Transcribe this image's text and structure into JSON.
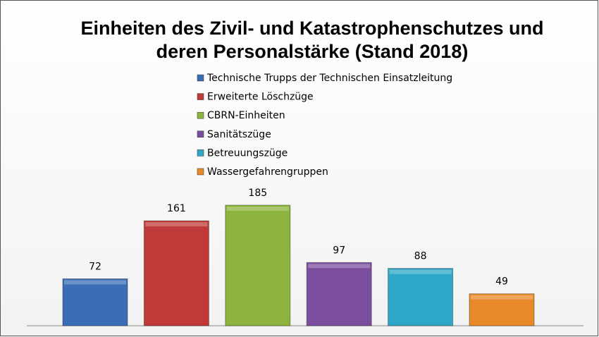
{
  "chart_data": {
    "type": "bar",
    "title": [
      "Einheiten des Zivil- und Katastrophenschutzes und",
      "deren Personalstärke (Stand 2018)"
    ],
    "categories": [
      null
    ],
    "series": [
      {
        "name": "Technische Trupps der Technischen Einsatzleitung",
        "color": "#3b6db5",
        "values": [
          72
        ]
      },
      {
        "name": "Erweiterte Löschzüge",
        "color": "#c03a3a",
        "values": [
          161
        ]
      },
      {
        "name": "CBRN-Einheiten",
        "color": "#8cb33c",
        "values": [
          185
        ]
      },
      {
        "name": "Sanitätszüge",
        "color": "#7a4e9c",
        "values": [
          97
        ]
      },
      {
        "name": "Betreuungszüge",
        "color": "#2ea7c8",
        "values": [
          88
        ]
      },
      {
        "name": "Wassergefahrengruppen",
        "color": "#e8892a",
        "values": [
          49
        ]
      }
    ],
    "legend": "top"
  }
}
